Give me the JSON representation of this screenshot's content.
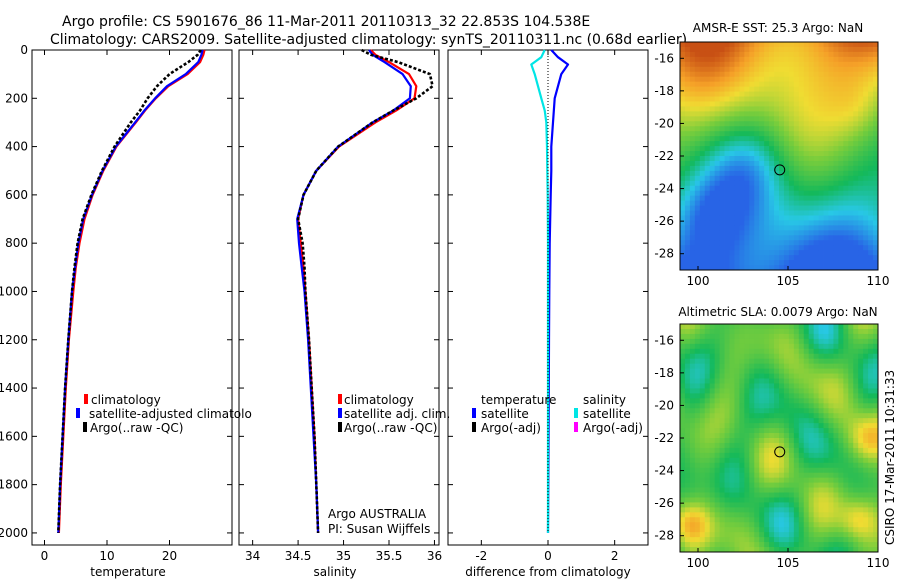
{
  "header": {
    "line1": "Argo profile: CS 5901676_86 11-Mar-2011 20110313_32 22.853S 104.538E",
    "line2": "Climatology: CARS2009. Satellite-adjusted climatology: synTS_20110311.nc (0.68d earlier)"
  },
  "depth_ticks": [
    "0",
    "200",
    "400",
    "600",
    "800",
    "1000",
    "1200",
    "1400",
    "1600",
    "1800",
    "2000"
  ],
  "colors": {
    "climatology": "#ff0000",
    "satellite": "#0000ff",
    "argo": "#000000",
    "satellite_salinity": "#00e5e5",
    "argo_adj_salinity": "#ff00ff"
  },
  "chart_data": [
    {
      "type": "line",
      "name": "temperature-panel",
      "xlabel": "temperature",
      "ylabel": "",
      "xlim": [
        -2,
        30
      ],
      "ylim": [
        2050,
        0
      ],
      "x_ticks": [
        "0",
        "10",
        "20"
      ],
      "x_tick_values": [
        0,
        10,
        20
      ],
      "legend": [
        "climatology",
        "satellite-adjusted climatolo",
        "Argo(..raw -QC)"
      ],
      "series": [
        {
          "name": "climatology",
          "style": "solid",
          "color": "#ff0000",
          "depth": [
            0,
            20,
            50,
            100,
            150,
            200,
            250,
            300,
            400,
            500,
            600,
            700,
            800,
            900,
            1000,
            1200,
            1400,
            1600,
            1800,
            2000
          ],
          "values": [
            25.6,
            25.4,
            24.9,
            22.9,
            19.8,
            17.8,
            16.1,
            14.6,
            11.5,
            9.4,
            7.7,
            6.4,
            5.6,
            5.0,
            4.6,
            3.9,
            3.4,
            3.0,
            2.6,
            2.3
          ]
        },
        {
          "name": "satellite-adjusted climatology",
          "style": "solid",
          "color": "#0000ff",
          "depth": [
            0,
            20,
            50,
            100,
            150,
            200,
            250,
            300,
            400,
            500,
            600,
            700,
            800,
            900,
            1000,
            1200,
            1400,
            1600,
            1800,
            2000
          ],
          "values": [
            25.3,
            25.1,
            24.6,
            22.6,
            19.6,
            17.7,
            16.0,
            14.5,
            11.4,
            9.3,
            7.6,
            6.2,
            5.4,
            4.9,
            4.4,
            3.8,
            3.3,
            2.9,
            2.5,
            2.2
          ]
        },
        {
          "name": "Argo(..raw -QC)",
          "style": "dashed",
          "color": "#000000",
          "depth": [
            0,
            20,
            50,
            100,
            150,
            200,
            250,
            300,
            400,
            500,
            600,
            700,
            800,
            900,
            1000,
            1200,
            1400,
            1600,
            1800,
            2000
          ],
          "values": [
            25.0,
            24.5,
            23.0,
            20.0,
            18.0,
            16.5,
            15.3,
            13.8,
            11.2,
            9.2,
            7.5,
            6.1,
            5.3,
            4.8,
            4.4,
            3.8,
            3.3,
            2.9,
            2.5,
            2.2
          ]
        }
      ]
    },
    {
      "type": "line",
      "name": "salinity-panel",
      "xlabel": "salinity",
      "ylabel": "",
      "xlim": [
        33.85,
        36.05
      ],
      "ylim": [
        2050,
        0
      ],
      "x_ticks": [
        "34",
        "34.5",
        "35",
        "35.5",
        "36"
      ],
      "x_tick_values": [
        34,
        34.5,
        35,
        35.5,
        36
      ],
      "legend": [
        "climatology",
        "satellite adj. clim.",
        "Argo(..raw -QC)"
      ],
      "annotation": [
        "Argo AUSTRALIA",
        "PI: Susan Wijffels"
      ],
      "series": [
        {
          "name": "climatology",
          "style": "solid",
          "color": "#ff0000",
          "depth": [
            0,
            20,
            50,
            100,
            150,
            200,
            250,
            300,
            400,
            500,
            600,
            700,
            800,
            900,
            1000,
            1200,
            1400,
            1600,
            1800,
            2000
          ],
          "values": [
            35.3,
            35.35,
            35.5,
            35.72,
            35.8,
            35.78,
            35.58,
            35.35,
            34.95,
            34.7,
            34.56,
            34.5,
            34.53,
            34.56,
            34.58,
            34.62,
            34.65,
            34.68,
            34.7,
            34.72
          ]
        },
        {
          "name": "satellite adj. clim.",
          "style": "solid",
          "color": "#0000ff",
          "depth": [
            0,
            20,
            50,
            100,
            150,
            200,
            250,
            300,
            400,
            500,
            600,
            700,
            800,
            900,
            1000,
            1200,
            1400,
            1600,
            1800,
            2000
          ],
          "values": [
            35.28,
            35.32,
            35.45,
            35.65,
            35.74,
            35.73,
            35.55,
            35.32,
            34.94,
            34.7,
            34.56,
            34.49,
            34.51,
            34.54,
            34.57,
            34.61,
            34.64,
            34.67,
            34.7,
            34.72
          ]
        },
        {
          "name": "Argo(..raw -QC)",
          "style": "dashed",
          "color": "#000000",
          "depth": [
            0,
            20,
            50,
            100,
            150,
            200,
            250,
            300,
            400,
            500,
            600,
            700,
            800,
            900,
            1000,
            1200,
            1400,
            1600,
            1800,
            2000
          ],
          "values": [
            35.2,
            35.3,
            35.6,
            35.95,
            35.98,
            35.8,
            35.55,
            35.32,
            34.94,
            34.7,
            34.56,
            34.5,
            34.55,
            34.57,
            34.58,
            34.62,
            34.65,
            34.68,
            34.7,
            34.72
          ]
        }
      ]
    },
    {
      "type": "line",
      "name": "difference-panel",
      "xlabel": "difference from climatology",
      "ylabel": "",
      "xlim": [
        -3,
        3
      ],
      "ylim": [
        2050,
        0
      ],
      "x_ticks": [
        "-2",
        "0",
        "2"
      ],
      "x_tick_values": [
        -2,
        0,
        2
      ],
      "legend_headers": [
        "temperature",
        "salinity"
      ],
      "legend": [
        "satellite",
        "Argo(-adj)",
        "satellite",
        "Argo(-adj)"
      ],
      "series": [
        {
          "name": "temperature satellite",
          "style": "solid",
          "color": "#0000ff",
          "depth": [
            0,
            30,
            60,
            100,
            150,
            200,
            300,
            400,
            500,
            600,
            800,
            1000,
            1200,
            1500,
            2000
          ],
          "values": [
            0.1,
            0.3,
            0.6,
            0.4,
            0.3,
            0.2,
            0.15,
            0.1,
            0.1,
            0.08,
            0.05,
            0.04,
            0.03,
            0.02,
            0.0
          ]
        },
        {
          "name": "salinity satellite",
          "style": "solid",
          "color": "#00e5e5",
          "depth": [
            0,
            30,
            60,
            100,
            150,
            200,
            250,
            300,
            400,
            500,
            600,
            800,
            1000,
            1200,
            1500,
            2000
          ],
          "values": [
            -0.1,
            -0.2,
            -0.5,
            -0.4,
            -0.3,
            -0.2,
            -0.1,
            -0.05,
            -0.03,
            -0.02,
            -0.01,
            0.0,
            0.0,
            0.0,
            0.0,
            0.0
          ]
        },
        {
          "name": "reference",
          "style": "dotted",
          "color": "#000000",
          "depth": [
            0,
            2000
          ],
          "values": [
            0,
            0
          ]
        }
      ]
    },
    {
      "type": "heatmap",
      "name": "sst-map",
      "title": "AMSR-E SST: 25.3 Argo: NaN",
      "xlim": [
        99,
        110
      ],
      "ylim": [
        -29,
        -15
      ],
      "x_ticks": [
        "100",
        "105",
        "110"
      ],
      "x_tick_values": [
        100,
        105,
        110
      ],
      "y_ticks": [
        "-16",
        "-18",
        "-20",
        "-22",
        "-24",
        "-26",
        "-28"
      ],
      "y_tick_values": [
        -16,
        -18,
        -20,
        -22,
        -24,
        -26,
        -28
      ],
      "marker": {
        "lon": 104.54,
        "lat": -22.85
      }
    },
    {
      "type": "heatmap",
      "name": "sla-map",
      "title": "Altimetric SLA: 0.0079 Argo: NaN",
      "xlim": [
        99,
        110
      ],
      "ylim": [
        -29,
        -15
      ],
      "x_ticks": [
        "100",
        "105",
        "110"
      ],
      "x_tick_values": [
        100,
        105,
        110
      ],
      "y_ticks": [
        "-16",
        "-18",
        "-20",
        "-22",
        "-24",
        "-26",
        "-28"
      ],
      "y_tick_values": [
        -16,
        -18,
        -20,
        -22,
        -24,
        -26,
        -28
      ],
      "marker": {
        "lon": 104.54,
        "lat": -22.85
      }
    }
  ],
  "stamp": "CSIRO 17-Mar-2011 10:31:33"
}
